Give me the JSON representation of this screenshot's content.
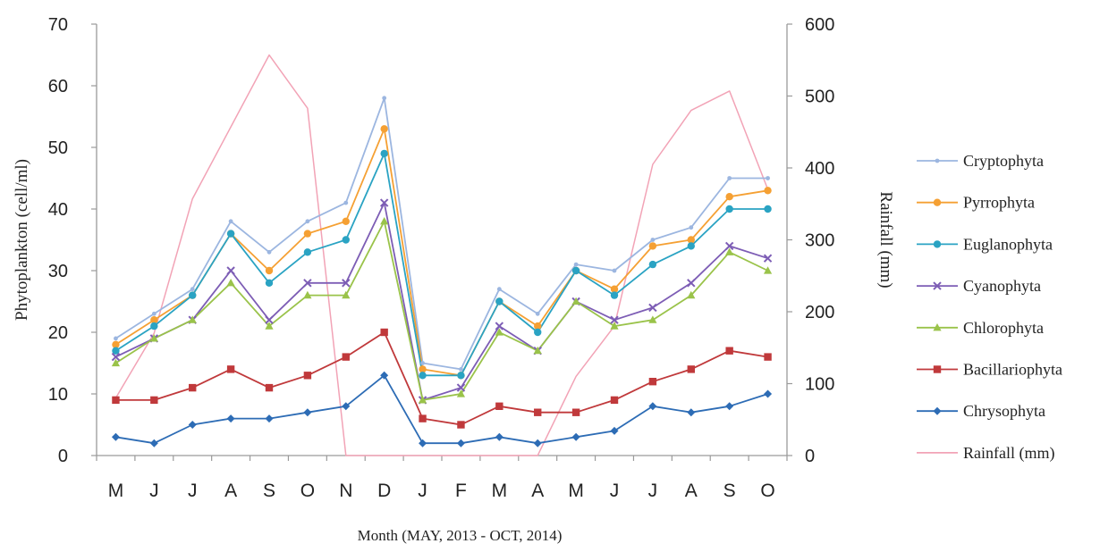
{
  "chart_data": {
    "type": "line",
    "categories": [
      "M",
      "J",
      "J",
      "A",
      "S",
      "O",
      "N",
      "D",
      "J",
      "F",
      "M",
      "A",
      "M",
      "J",
      "J",
      "A",
      "S",
      "O"
    ],
    "xlabel": "Month (MAY, 2013 - OCT, 2014)",
    "ylabel": "Phytoplankton (cell/ml)",
    "y2label": "Rainfall (mm)",
    "ylim": [
      0,
      70
    ],
    "y2lim": [
      0,
      600
    ],
    "yticks": [
      "0",
      "10",
      "20",
      "30",
      "40",
      "50",
      "60",
      "70"
    ],
    "y2ticks": [
      "0",
      "100",
      "200",
      "300",
      "400",
      "500",
      "600"
    ],
    "grid": false,
    "legend_position": "right",
    "series": [
      {
        "name": "Cryptophyta",
        "color": "#9cb6e0",
        "marker": "dot",
        "axis": "left",
        "values": [
          19,
          23,
          27,
          38,
          33,
          38,
          41,
          58,
          15,
          14,
          27,
          23,
          31,
          30,
          35,
          37,
          45,
          45
        ]
      },
      {
        "name": "Pyrrophyta",
        "color": "#f5a033",
        "marker": "circle",
        "axis": "left",
        "values": [
          18,
          22,
          26,
          36,
          30,
          36,
          38,
          53,
          14,
          13,
          25,
          21,
          30,
          27,
          34,
          35,
          42,
          43
        ]
      },
      {
        "name": "Euglanophyta",
        "color": "#2aa3c3",
        "marker": "circle",
        "axis": "left",
        "values": [
          17,
          21,
          26,
          36,
          28,
          33,
          35,
          49,
          13,
          13,
          25,
          20,
          30,
          26,
          31,
          34,
          40,
          40
        ]
      },
      {
        "name": "Cyanophyta",
        "color": "#7d5db5",
        "marker": "x",
        "axis": "left",
        "values": [
          16,
          19,
          22,
          30,
          22,
          28,
          28,
          41,
          9,
          11,
          21,
          17,
          25,
          22,
          24,
          28,
          34,
          32
        ]
      },
      {
        "name": "Chlorophyta",
        "color": "#9ac34a",
        "marker": "triangle",
        "axis": "left",
        "values": [
          15,
          19,
          22,
          28,
          21,
          26,
          26,
          38,
          9,
          10,
          20,
          17,
          25,
          21,
          22,
          26,
          33,
          30
        ]
      },
      {
        "name": "Bacillariophyta",
        "color": "#c0393b",
        "marker": "square",
        "axis": "left",
        "values": [
          9,
          9,
          11,
          14,
          11,
          13,
          16,
          20,
          6,
          5,
          8,
          7,
          7,
          9,
          12,
          14,
          17,
          16
        ]
      },
      {
        "name": "Chrysophyta",
        "color": "#2d6cb5",
        "marker": "diamond",
        "axis": "left",
        "values": [
          3,
          2,
          5,
          6,
          6,
          7,
          8,
          13,
          2,
          2,
          3,
          2,
          3,
          4,
          8,
          7,
          8,
          10
        ]
      },
      {
        "name": "Rainfall (mm)",
        "color": "#f2a3b6",
        "marker": "none",
        "axis": "right",
        "values": [
          80,
          170,
          357,
          457,
          557,
          483,
          0,
          0,
          0,
          0,
          0,
          0,
          110,
          180,
          405,
          480,
          507,
          370
        ]
      }
    ]
  }
}
